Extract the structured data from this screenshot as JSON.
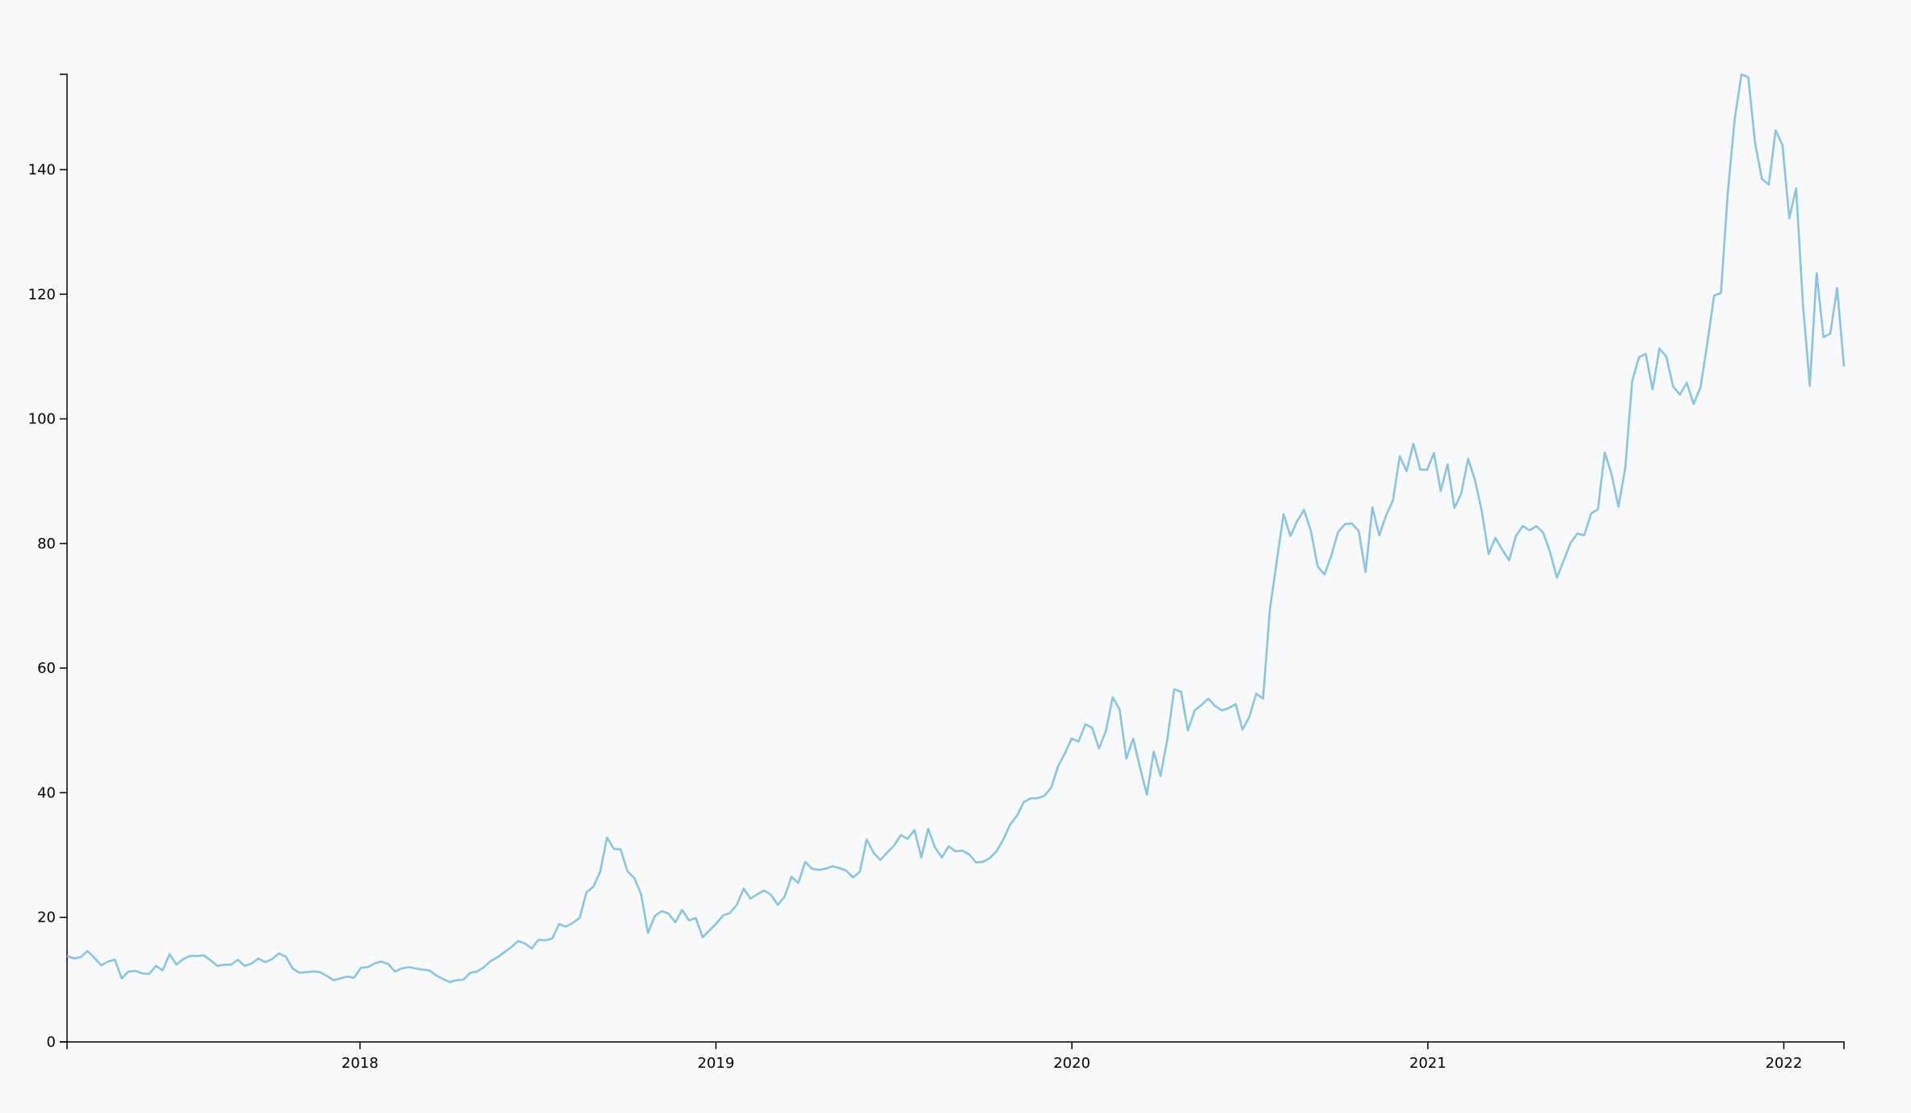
{
  "chart_data": {
    "type": "line",
    "x": [
      2017.177,
      2017.1962,
      2017.2154,
      2017.2346,
      2017.2538,
      2017.273,
      2017.2922,
      2017.3114,
      2017.3306,
      2017.3498,
      2017.369,
      2017.3882,
      2017.4074,
      2017.4266,
      2017.4458,
      2017.465,
      2017.4842,
      2017.5034,
      2017.5226,
      2017.5418,
      2017.561,
      2017.5802,
      2017.5994,
      2017.6186,
      2017.6378,
      2017.657,
      2017.6762,
      2017.6954,
      2017.7146,
      2017.7338,
      2017.753,
      2017.7722,
      2017.7914,
      2017.8106,
      2017.8298,
      2017.849,
      2017.8682,
      2017.8874,
      2017.9066,
      2017.9258,
      2017.945,
      2017.9642,
      2017.9834,
      2018.0026,
      2018.0218,
      2018.041,
      2018.0602,
      2018.0794,
      2018.0986,
      2018.1178,
      2018.137,
      2018.1562,
      2018.1754,
      2018.1946,
      2018.2138,
      2018.233,
      2018.2522,
      2018.2714,
      2018.2906,
      2018.3098,
      2018.329,
      2018.3482,
      2018.3674,
      2018.3866,
      2018.4058,
      2018.425,
      2018.4442,
      2018.4634,
      2018.4826,
      2018.5018,
      2018.521,
      2018.5402,
      2018.5594,
      2018.5786,
      2018.5978,
      2018.617,
      2018.6362,
      2018.6554,
      2018.6746,
      2018.6938,
      2018.713,
      2018.7322,
      2018.7514,
      2018.7706,
      2018.7898,
      2018.809,
      2018.8282,
      2018.8474,
      2018.8666,
      2018.8858,
      2018.905,
      2018.9242,
      2018.9434,
      2018.9626,
      2018.9818,
      2019.001,
      2019.0202,
      2019.0394,
      2019.0586,
      2019.0778,
      2019.097,
      2019.1162,
      2019.1354,
      2019.1546,
      2019.1738,
      2019.193,
      2019.2122,
      2019.2314,
      2019.2506,
      2019.2698,
      2019.289,
      2019.3082,
      2019.3274,
      2019.3466,
      2019.3658,
      2019.385,
      2019.4042,
      2019.4234,
      2019.4426,
      2019.4618,
      2019.481,
      2019.5002,
      2019.5194,
      2019.5386,
      2019.5578,
      2019.577,
      2019.5962,
      2019.6154,
      2019.6346,
      2019.6538,
      2019.673,
      2019.6922,
      2019.7114,
      2019.7306,
      2019.7498,
      2019.769,
      2019.7882,
      2019.8074,
      2019.8266,
      2019.8458,
      2019.865,
      2019.8842,
      2019.9034,
      2019.9226,
      2019.9418,
      2019.961,
      2019.9802,
      2019.9994,
      2020.0186,
      2020.0378,
      2020.057,
      2020.0762,
      2020.0954,
      2020.1146,
      2020.1338,
      2020.153,
      2020.1722,
      2020.1914,
      2020.2106,
      2020.2298,
      2020.249,
      2020.2682,
      2020.2874,
      2020.3066,
      2020.3258,
      2020.345,
      2020.3642,
      2020.3834,
      2020.4026,
      2020.4218,
      2020.441,
      2020.4602,
      2020.4794,
      2020.4986,
      2020.5178,
      2020.537,
      2020.5562,
      2020.5754,
      2020.5946,
      2020.6138,
      2020.633,
      2020.6522,
      2020.6714,
      2020.6906,
      2020.7098,
      2020.729,
      2020.7482,
      2020.7674,
      2020.7866,
      2020.8058,
      2020.825,
      2020.8442,
      2020.8634,
      2020.8826,
      2020.9018,
      2020.921,
      2020.9402,
      2020.9594,
      2020.9786,
      2020.9978,
      2021.017,
      2021.0362,
      2021.0554,
      2021.0746,
      2021.0938,
      2021.113,
      2021.1322,
      2021.1514,
      2021.1706,
      2021.1898,
      2021.209,
      2021.2282,
      2021.2474,
      2021.2666,
      2021.2858,
      2021.305,
      2021.3242,
      2021.3434,
      2021.3626,
      2021.3818,
      2021.401,
      2021.4202,
      2021.4394,
      2021.4586,
      2021.4778,
      2021.497,
      2021.5162,
      2021.5354,
      2021.5546,
      2021.5738,
      2021.593,
      2021.6122,
      2021.6314,
      2021.6506,
      2021.6698,
      2021.689,
      2021.7082,
      2021.7274,
      2021.7466,
      2021.7658,
      2021.785,
      2021.8042,
      2021.8234,
      2021.8426,
      2021.8618,
      2021.881,
      2021.9002,
      2021.9194,
      2021.9386,
      2021.9578,
      2021.977,
      2021.9962,
      2022.0154,
      2022.0346,
      2022.0538,
      2022.073,
      2022.0922,
      2022.1114,
      2022.1306,
      2022.1498,
      2022.169
    ],
    "series": [
      {
        "color": "#8cc3dd",
        "values": [
          13.8,
          13.4,
          13.6,
          14.6,
          13.5,
          12.3,
          12.9,
          13.2,
          10.2,
          11.3,
          11.4,
          11.0,
          10.9,
          12.2,
          11.5,
          14.1,
          12.4,
          13.3,
          13.8,
          13.8,
          13.9,
          13.1,
          12.2,
          12.4,
          12.4,
          13.2,
          12.2,
          12.6,
          13.4,
          12.8,
          13.3,
          14.2,
          13.7,
          11.8,
          11.1,
          11.2,
          11.3,
          11.2,
          10.6,
          9.9,
          10.2,
          10.5,
          10.3,
          11.9,
          12.0,
          12.6,
          12.9,
          12.5,
          11.3,
          11.8,
          12.0,
          11.8,
          11.6,
          11.5,
          10.7,
          10.1,
          9.6,
          9.9,
          10.0,
          11.1,
          11.3,
          12.0,
          13.0,
          13.6,
          14.4,
          15.2,
          16.2,
          15.8,
          15.0,
          16.4,
          16.3,
          16.6,
          18.9,
          18.5,
          19.1,
          19.9,
          24.0,
          24.9,
          27.3,
          32.8,
          31.0,
          30.9,
          27.4,
          26.3,
          23.7,
          17.5,
          20.2,
          21.0,
          20.6,
          19.2,
          21.2,
          19.5,
          19.9,
          16.8,
          17.9,
          19.0,
          20.3,
          20.7,
          22.0,
          24.6,
          23.0,
          23.7,
          24.3,
          23.6,
          22.0,
          23.3,
          26.5,
          25.5,
          28.9,
          27.8,
          27.6,
          27.8,
          28.2,
          27.9,
          27.5,
          26.4,
          27.3,
          32.5,
          30.4,
          29.2,
          30.4,
          31.5,
          33.2,
          32.6,
          34.0,
          29.6,
          34.2,
          31.2,
          29.6,
          31.4,
          30.6,
          30.7,
          30.1,
          28.8,
          28.9,
          29.5,
          30.6,
          32.5,
          34.9,
          36.3,
          38.5,
          39.1,
          39.1,
          39.5,
          40.8,
          44.2,
          46.3,
          48.7,
          48.2,
          51.0,
          50.4,
          47.1,
          49.9,
          55.3,
          53.4,
          45.5,
          48.7,
          44.0,
          39.7,
          46.6,
          42.7,
          48.6,
          56.6,
          56.2,
          50.0,
          53.2,
          54.1,
          55.1,
          53.9,
          53.2,
          53.6,
          54.2,
          50.1,
          52.2,
          55.9,
          55.1,
          69.4,
          77.1,
          84.7,
          81.2,
          83.6,
          85.4,
          82.0,
          76.3,
          75.0,
          78.1,
          81.9,
          83.1,
          83.2,
          82.0,
          75.4,
          85.8,
          81.3,
          84.5,
          86.9,
          94.0,
          91.6,
          96.0,
          91.9,
          91.8,
          94.5,
          88.4,
          92.7,
          85.7,
          88.0,
          93.6,
          90.2,
          85.2,
          78.3,
          80.9,
          79.0,
          77.3,
          81.2,
          82.8,
          82.1,
          82.8,
          81.7,
          78.6,
          74.5,
          77.3,
          80.1,
          81.6,
          81.3,
          84.8,
          85.5,
          94.6,
          91.1,
          85.9,
          92.1,
          106.0,
          109.9,
          110.4,
          104.7,
          111.3,
          110.0,
          105.2,
          103.9,
          105.8,
          102.4,
          105.0,
          112.1,
          119.8,
          120.2,
          136.3,
          148.0,
          155.3,
          154.8,
          144.2,
          138.5,
          137.6,
          146.3,
          144.0,
          132.2,
          137.0,
          118.3,
          105.3,
          123.4,
          113.1,
          113.7,
          121.0,
          108.4
        ]
      }
    ],
    "xlim": [
      2017.177,
      2022.169
    ],
    "xticks": [
      2018,
      2019,
      2020,
      2021,
      2022
    ],
    "ylim": [
      0,
      155.3
    ],
    "yticks": [
      0,
      20,
      40,
      60,
      80,
      100,
      120,
      140
    ]
  }
}
